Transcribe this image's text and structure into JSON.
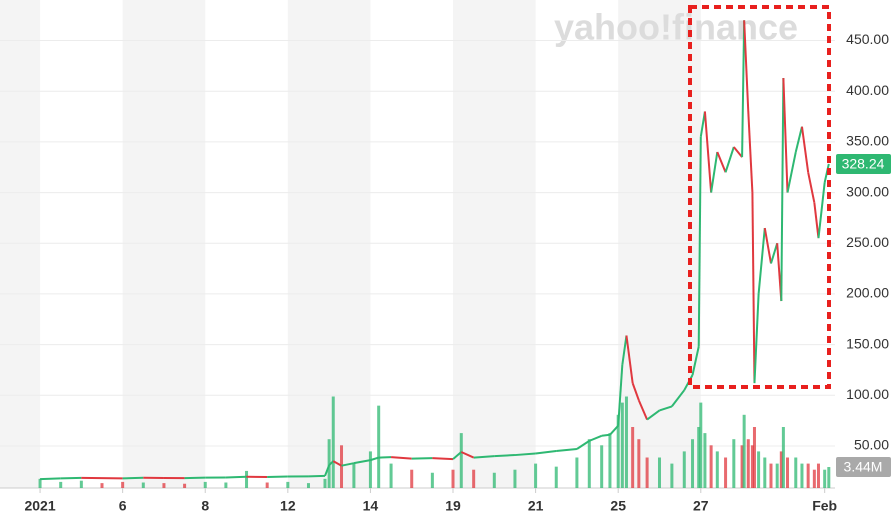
{
  "chart_data": {
    "type": "line",
    "watermark": "yahoo!finance",
    "x": [
      0,
      0.5,
      1,
      1.5,
      2,
      2.5,
      3,
      3.5,
      4,
      4.5,
      5,
      5.5,
      6,
      6.5,
      6.9,
      7,
      7.1,
      7.3,
      7.6,
      8,
      8.2,
      8.5,
      9,
      9.5,
      10,
      10.2,
      10.5,
      11,
      11.5,
      12,
      12.5,
      13,
      13.3,
      13.6,
      13.8,
      14,
      14.1,
      14.2,
      14.35,
      14.5,
      14.7,
      15,
      15.3,
      15.6,
      15.8,
      15.95,
      16,
      16.1,
      16.25,
      16.4,
      16.6,
      16.8,
      17,
      17.05,
      17.15,
      17.25,
      17.3,
      17.4,
      17.55,
      17.7,
      17.85,
      17.95,
      18,
      18.1,
      18.3,
      18.45,
      18.6,
      18.75,
      18.85,
      19,
      19.1
    ],
    "values": [
      17.2,
      18,
      18.5,
      18.2,
      18,
      18.6,
      18.4,
      18.3,
      18.7,
      18.9,
      19.6,
      19.3,
      19.9,
      20,
      20.5,
      31,
      35,
      30.5,
      33,
      36,
      38.5,
      39,
      37.5,
      38,
      37,
      44,
      38.5,
      40,
      41,
      42.5,
      45,
      47,
      55,
      60,
      61,
      70,
      130,
      159,
      112,
      95,
      76,
      85,
      89,
      105,
      120,
      148,
      355,
      380,
      300,
      340,
      320,
      345,
      335,
      470,
      380,
      300,
      112,
      200,
      265,
      230,
      250,
      193,
      413,
      300,
      340,
      365,
      320,
      290,
      255,
      310,
      328.24
    ],
    "volume": [
      1.5,
      1,
      1.2,
      0.8,
      1,
      0.9,
      0.8,
      0.7,
      1,
      0.9,
      2.8,
      0.9,
      1,
      0.8,
      1.5,
      8,
      15,
      7,
      4,
      6,
      13.5,
      4,
      3,
      2.5,
      3,
      9,
      3,
      2.5,
      3,
      4,
      3.5,
      5,
      8,
      7,
      9,
      12,
      14,
      15,
      10,
      8,
      5,
      5,
      4,
      6,
      8,
      10,
      14,
      9,
      7,
      6,
      5,
      8,
      7,
      12,
      8,
      7,
      10,
      6,
      5,
      4,
      4,
      6,
      10,
      5,
      5,
      4,
      4,
      3,
      4,
      3,
      3.44
    ],
    "up_color": "#2eb872",
    "down_color": "#e0383f",
    "xlim": [
      -0.97,
      19.25
    ],
    "ylim": [
      8.5,
      490
    ],
    "y2lim": [
      0,
      80
    ],
    "xticks": [
      {
        "value": 0,
        "label": "2021"
      },
      {
        "value": 2,
        "label": "6"
      },
      {
        "value": 4,
        "label": "8"
      },
      {
        "value": 6,
        "label": "12"
      },
      {
        "value": 8,
        "label": "14"
      },
      {
        "value": 10,
        "label": "19"
      },
      {
        "value": 12,
        "label": "21"
      },
      {
        "value": 14,
        "label": "25"
      },
      {
        "value": 16,
        "label": "27"
      },
      {
        "value": 19,
        "label": "Feb"
      }
    ],
    "yticks": [
      {
        "value": 50,
        "label": "50.00"
      },
      {
        "value": 100,
        "label": "100.00"
      },
      {
        "value": 150,
        "label": "150.00"
      },
      {
        "value": 200,
        "label": "200.00"
      },
      {
        "value": 250,
        "label": "250.00"
      },
      {
        "value": 300,
        "label": "300.00"
      },
      {
        "value": 350,
        "label": "350.00"
      },
      {
        "value": 400,
        "label": "400.00"
      },
      {
        "value": 450,
        "label": "450.00"
      }
    ],
    "last_price": 328.24,
    "last_volume": {
      "value": 3.44,
      "label": "3.44M"
    },
    "grid": true
  }
}
